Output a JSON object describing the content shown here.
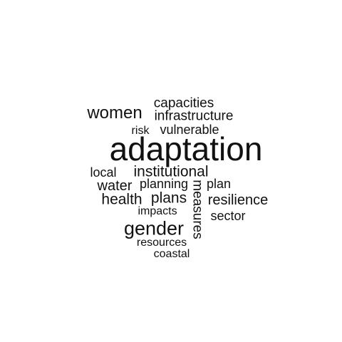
{
  "words": [
    {
      "text": "adaptation"
    },
    {
      "text": "gender"
    },
    {
      "text": "women"
    },
    {
      "text": "institutional"
    },
    {
      "text": "infrastructure"
    },
    {
      "text": "capacities"
    },
    {
      "text": "resilience"
    },
    {
      "text": "health"
    },
    {
      "text": "plans"
    },
    {
      "text": "water"
    },
    {
      "text": "measures"
    },
    {
      "text": "vulnerable"
    },
    {
      "text": "planning"
    },
    {
      "text": "local"
    },
    {
      "text": "plan"
    },
    {
      "text": "sector"
    },
    {
      "text": "risk"
    },
    {
      "text": "impacts"
    },
    {
      "text": "resources"
    },
    {
      "text": "coastal"
    }
  ],
  "colors": {
    "text": "#111111",
    "background": "#ffffff"
  }
}
